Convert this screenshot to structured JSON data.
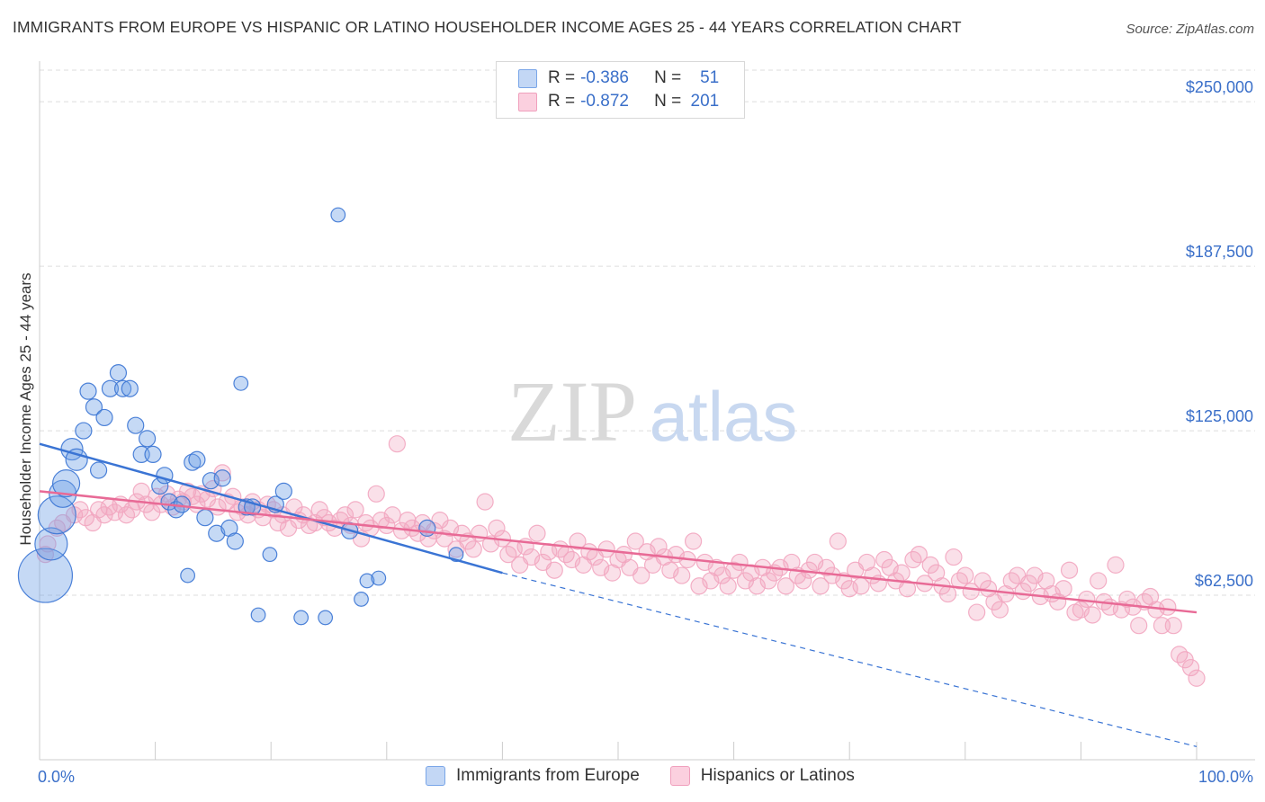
{
  "header": {
    "title": "IMMIGRANTS FROM EUROPE VS HISPANIC OR LATINO HOUSEHOLDER INCOME AGES 25 - 44 YEARS CORRELATION CHART",
    "source": "Source: ZipAtlas.com"
  },
  "watermark": {
    "zip": "ZIP",
    "atlas": "atlas"
  },
  "legend": {
    "series": [
      {
        "r_label": "R =",
        "r_value": "-0.386",
        "n_label": "N =",
        "n_value": "51",
        "color": "#7aa6e8"
      },
      {
        "r_label": "R =",
        "r_value": "-0.872",
        "n_label": "N =",
        "n_value": "201",
        "color": "#f0a0bd"
      }
    ]
  },
  "bottom_legend": {
    "items": [
      {
        "label": "Immigrants from Europe",
        "color": "#7aa6e8"
      },
      {
        "label": "Hispanics or Latinos",
        "color": "#f0a0bd"
      }
    ]
  },
  "chart_data": {
    "type": "scatter",
    "title": "IMMIGRANTS FROM EUROPE VS HISPANIC OR LATINO HOUSEHOLDER INCOME AGES 25 - 44 YEARS CORRELATION CHART",
    "xlabel": "",
    "ylabel": "Householder Income Ages 25 - 44 years",
    "xlim": [
      0,
      100
    ],
    "ylim": [
      0,
      262000
    ],
    "x_tick_labels": [
      "0.0%",
      "100.0%"
    ],
    "y_ticks": [
      62500,
      125000,
      187500,
      250000
    ],
    "y_tick_labels": [
      "$62,500",
      "$125,000",
      "$187,500",
      "$250,000"
    ],
    "grid": true,
    "colors": {
      "europe": "#6f9fe6",
      "europe_line": "#3a74d4",
      "hispanic": "#f2a6c0",
      "hispanic_line": "#e86a96",
      "tick_label": "#3a6fc9"
    },
    "series": [
      {
        "name": "Immigrants from Europe",
        "r": -0.386,
        "n": 51,
        "trend": {
          "x0": 0,
          "y0": 120000,
          "x1": 40,
          "y1": 71000,
          "dashed_to_x": 100,
          "dashed_to_y": 5000
        },
        "points": [
          [
            0.5,
            70000,
            5
          ],
          [
            1,
            82000,
            3
          ],
          [
            1.5,
            93000,
            3.5
          ],
          [
            2,
            101000,
            2.5
          ],
          [
            2.3,
            105000,
            2.5
          ],
          [
            2.8,
            118000,
            2
          ],
          [
            3.2,
            114000,
            2
          ],
          [
            3.8,
            125000,
            1.5
          ],
          [
            4.2,
            140000,
            1.5
          ],
          [
            4.7,
            134000,
            1.5
          ],
          [
            5.1,
            110000,
            1.5
          ],
          [
            5.6,
            130000,
            1.5
          ],
          [
            6.1,
            141000,
            1.5
          ],
          [
            6.8,
            147000,
            1.5
          ],
          [
            7.2,
            141000,
            1.5
          ],
          [
            7.8,
            141000,
            1.5
          ],
          [
            8.3,
            127000,
            1.5
          ],
          [
            8.8,
            116000,
            1.5
          ],
          [
            9.3,
            122000,
            1.5
          ],
          [
            9.8,
            116000,
            1.5
          ],
          [
            10.4,
            104000,
            1.5
          ],
          [
            10.8,
            108000,
            1.5
          ],
          [
            11.2,
            98000,
            1.5
          ],
          [
            11.8,
            95000,
            1.5
          ],
          [
            12.3,
            97000,
            1.5
          ],
          [
            12.8,
            70000,
            1.3
          ],
          [
            13.2,
            113000,
            1.5
          ],
          [
            13.6,
            114000,
            1.5
          ],
          [
            14.3,
            92000,
            1.5
          ],
          [
            14.8,
            106000,
            1.5
          ],
          [
            15.3,
            86000,
            1.5
          ],
          [
            15.8,
            107000,
            1.5
          ],
          [
            16.4,
            88000,
            1.5
          ],
          [
            16.9,
            83000,
            1.5
          ],
          [
            17.4,
            143000,
            1.3
          ],
          [
            17.9,
            96000,
            1.5
          ],
          [
            18.4,
            96000,
            1.5
          ],
          [
            18.9,
            55000,
            1.3
          ],
          [
            19.9,
            78000,
            1.3
          ],
          [
            20.4,
            97000,
            1.5
          ],
          [
            21.1,
            102000,
            1.5
          ],
          [
            22.6,
            54000,
            1.3
          ],
          [
            24.7,
            54000,
            1.3
          ],
          [
            25.8,
            207000,
            1.3
          ],
          [
            26.8,
            87000,
            1.5
          ],
          [
            27.8,
            61000,
            1.3
          ],
          [
            28.3,
            68000,
            1.3
          ],
          [
            29.3,
            69000,
            1.3
          ],
          [
            33.5,
            88000,
            1.5
          ],
          [
            36.0,
            78000,
            1.3
          ]
        ]
      },
      {
        "name": "Hispanics or Latinos",
        "r": -0.872,
        "n": 201,
        "trend": {
          "x0": 0,
          "y0": 102000,
          "x1": 100,
          "y1": 56000
        },
        "points": [
          [
            0.5,
            78000
          ],
          [
            0.7,
            82000
          ],
          [
            1.5,
            88000
          ],
          [
            2,
            90000
          ],
          [
            3,
            93000
          ],
          [
            3.5,
            95000
          ],
          [
            4,
            92000
          ],
          [
            4.6,
            90000
          ],
          [
            5.1,
            95000
          ],
          [
            5.6,
            93000
          ],
          [
            6,
            96000
          ],
          [
            6.5,
            94000
          ],
          [
            7,
            97000
          ],
          [
            7.5,
            93000
          ],
          [
            8,
            95000
          ],
          [
            8.4,
            98000
          ],
          [
            8.8,
            102000
          ],
          [
            9.2,
            97000
          ],
          [
            9.7,
            94000
          ],
          [
            10.1,
            100000
          ],
          [
            10.5,
            97000
          ],
          [
            11,
            101000
          ],
          [
            11.5,
            96000
          ],
          [
            12,
            99000
          ],
          [
            12.4,
            98000
          ],
          [
            12.8,
            102000
          ],
          [
            13.2,
            100000
          ],
          [
            13.6,
            97000
          ],
          [
            14,
            101000
          ],
          [
            14.5,
            99000
          ],
          [
            15,
            103000
          ],
          [
            15.4,
            96000
          ],
          [
            15.8,
            109000
          ],
          [
            16.2,
            98000
          ],
          [
            16.7,
            100000
          ],
          [
            17.1,
            94000
          ],
          [
            17.5,
            96000
          ],
          [
            18,
            93000
          ],
          [
            18.4,
            98000
          ],
          [
            18.9,
            95000
          ],
          [
            19.3,
            92000
          ],
          [
            19.7,
            97000
          ],
          [
            20.2,
            95000
          ],
          [
            20.6,
            90000
          ],
          [
            21,
            93000
          ],
          [
            21.5,
            88000
          ],
          [
            22,
            96000
          ],
          [
            22.4,
            91000
          ],
          [
            22.8,
            93000
          ],
          [
            23.3,
            89000
          ],
          [
            23.8,
            90000
          ],
          [
            24.2,
            95000
          ],
          [
            24.6,
            92000
          ],
          [
            25,
            90000
          ],
          [
            25.5,
            88000
          ],
          [
            26,
            91000
          ],
          [
            26.4,
            93000
          ],
          [
            26.9,
            89000
          ],
          [
            27.3,
            95000
          ],
          [
            27.8,
            84000
          ],
          [
            28.2,
            90000
          ],
          [
            28.6,
            88000
          ],
          [
            29.1,
            101000
          ],
          [
            29.5,
            91000
          ],
          [
            30,
            89000
          ],
          [
            30.5,
            93000
          ],
          [
            30.9,
            120000
          ],
          [
            31.3,
            87000
          ],
          [
            31.8,
            91000
          ],
          [
            32.2,
            88000
          ],
          [
            32.7,
            86000
          ],
          [
            33.1,
            90000
          ],
          [
            33.6,
            84000
          ],
          [
            34.1,
            87000
          ],
          [
            34.6,
            91000
          ],
          [
            35,
            84000
          ],
          [
            35.5,
            88000
          ],
          [
            36,
            80000
          ],
          [
            36.5,
            86000
          ],
          [
            37,
            83000
          ],
          [
            37.5,
            80000
          ],
          [
            38,
            86000
          ],
          [
            38.5,
            98000
          ],
          [
            39,
            82000
          ],
          [
            39.5,
            88000
          ],
          [
            40,
            84000
          ],
          [
            40.5,
            78000
          ],
          [
            41,
            80000
          ],
          [
            41.5,
            74000
          ],
          [
            42,
            81000
          ],
          [
            42.5,
            77000
          ],
          [
            43,
            86000
          ],
          [
            43.5,
            75000
          ],
          [
            44,
            79000
          ],
          [
            44.5,
            72000
          ],
          [
            45,
            80000
          ],
          [
            45.5,
            78000
          ],
          [
            46,
            76000
          ],
          [
            46.5,
            83000
          ],
          [
            47,
            74000
          ],
          [
            47.5,
            79000
          ],
          [
            48,
            77000
          ],
          [
            48.5,
            73000
          ],
          [
            49,
            80000
          ],
          [
            49.5,
            71000
          ],
          [
            50,
            76000
          ],
          [
            50.5,
            78000
          ],
          [
            51,
            73000
          ],
          [
            51.5,
            83000
          ],
          [
            52,
            70000
          ],
          [
            52.5,
            79000
          ],
          [
            53,
            74000
          ],
          [
            53.5,
            81000
          ],
          [
            54,
            77000
          ],
          [
            54.5,
            72000
          ],
          [
            55,
            78000
          ],
          [
            55.5,
            70000
          ],
          [
            56,
            76000
          ],
          [
            56.5,
            83000
          ],
          [
            57,
            66000
          ],
          [
            57.5,
            75000
          ],
          [
            58,
            68000
          ],
          [
            58.5,
            73000
          ],
          [
            59,
            70000
          ],
          [
            59.5,
            66000
          ],
          [
            60,
            72000
          ],
          [
            60.5,
            75000
          ],
          [
            61,
            68000
          ],
          [
            61.5,
            71000
          ],
          [
            62,
            66000
          ],
          [
            62.5,
            73000
          ],
          [
            63,
            68000
          ],
          [
            63.5,
            71000
          ],
          [
            64,
            73000
          ],
          [
            64.5,
            66000
          ],
          [
            65,
            75000
          ],
          [
            65.5,
            70000
          ],
          [
            66,
            68000
          ],
          [
            66.5,
            72000
          ],
          [
            67,
            75000
          ],
          [
            67.5,
            66000
          ],
          [
            68,
            73000
          ],
          [
            68.5,
            70000
          ],
          [
            69,
            83000
          ],
          [
            69.5,
            68000
          ],
          [
            70,
            65000
          ],
          [
            70.5,
            72000
          ],
          [
            71,
            66000
          ],
          [
            71.5,
            75000
          ],
          [
            72,
            70000
          ],
          [
            72.5,
            67000
          ],
          [
            73,
            76000
          ],
          [
            73.5,
            73000
          ],
          [
            74,
            68000
          ],
          [
            74.5,
            71000
          ],
          [
            75,
            65000
          ],
          [
            75.5,
            76000
          ],
          [
            76,
            78000
          ],
          [
            76.5,
            67000
          ],
          [
            77,
            74000
          ],
          [
            77.5,
            71000
          ],
          [
            78,
            66000
          ],
          [
            78.5,
            63000
          ],
          [
            79,
            77000
          ],
          [
            79.5,
            68000
          ],
          [
            80,
            70000
          ],
          [
            80.5,
            64000
          ],
          [
            81,
            56000
          ],
          [
            81.5,
            68000
          ],
          [
            82,
            65000
          ],
          [
            82.5,
            60000
          ],
          [
            83,
            57000
          ],
          [
            83.5,
            63000
          ],
          [
            84,
            68000
          ],
          [
            84.5,
            70000
          ],
          [
            85,
            64000
          ],
          [
            85.5,
            67000
          ],
          [
            86,
            70000
          ],
          [
            86.5,
            62000
          ],
          [
            87,
            68000
          ],
          [
            87.5,
            63000
          ],
          [
            88,
            60000
          ],
          [
            88.5,
            65000
          ],
          [
            89,
            72000
          ],
          [
            89.5,
            56000
          ],
          [
            90,
            57000
          ],
          [
            90.5,
            61000
          ],
          [
            91,
            55000
          ],
          [
            91.5,
            68000
          ],
          [
            92,
            60000
          ],
          [
            92.5,
            58000
          ],
          [
            93,
            74000
          ],
          [
            93.5,
            57000
          ],
          [
            94,
            61000
          ],
          [
            94.5,
            58000
          ],
          [
            95,
            51000
          ],
          [
            95.5,
            60000
          ],
          [
            96,
            62000
          ],
          [
            96.5,
            57000
          ],
          [
            97,
            51000
          ],
          [
            97.5,
            58000
          ],
          [
            98,
            51000
          ],
          [
            98.5,
            40000
          ],
          [
            99,
            38000
          ],
          [
            99.5,
            35000
          ],
          [
            100,
            31000
          ]
        ]
      }
    ]
  }
}
